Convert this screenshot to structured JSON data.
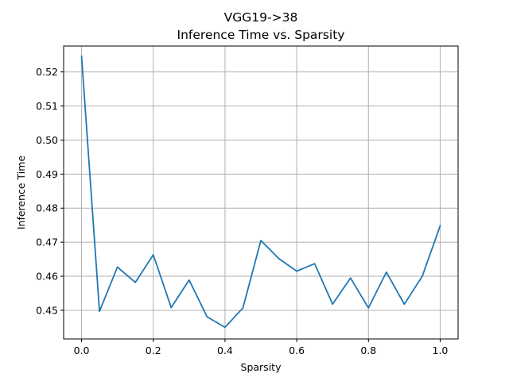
{
  "chart_data": {
    "type": "line",
    "title": "VGG19->38",
    "subtitle": "Inference Time vs. Sparsity",
    "xlabel": "Sparsity",
    "ylabel": "Inference Time",
    "xlim": [
      -0.05,
      1.05
    ],
    "ylim": [
      0.4416,
      0.5276
    ],
    "grid": true,
    "xticks": [
      {
        "value": 0.0,
        "label": "0.0"
      },
      {
        "value": 0.2,
        "label": "0.2"
      },
      {
        "value": 0.4,
        "label": "0.4"
      },
      {
        "value": 0.6,
        "label": "0.6"
      },
      {
        "value": 0.8,
        "label": "0.8"
      },
      {
        "value": 1.0,
        "label": "1.0"
      }
    ],
    "yticks": [
      {
        "value": 0.45,
        "label": "0.45"
      },
      {
        "value": 0.46,
        "label": "0.46"
      },
      {
        "value": 0.47,
        "label": "0.47"
      },
      {
        "value": 0.48,
        "label": "0.48"
      },
      {
        "value": 0.49,
        "label": "0.49"
      },
      {
        "value": 0.5,
        "label": "0.50"
      },
      {
        "value": 0.51,
        "label": "0.51"
      },
      {
        "value": 0.52,
        "label": "0.52"
      }
    ],
    "series": [
      {
        "color": "#1f77b4",
        "x": [
          0.0,
          0.05,
          0.1,
          0.15,
          0.2,
          0.25,
          0.3,
          0.35,
          0.4,
          0.45,
          0.5,
          0.55,
          0.6,
          0.65,
          0.7,
          0.75,
          0.8,
          0.85,
          0.9,
          0.95,
          1.0
        ],
        "y": [
          0.5246,
          0.4497,
          0.4627,
          0.4582,
          0.4663,
          0.4508,
          0.4589,
          0.4481,
          0.445,
          0.4507,
          0.4705,
          0.4652,
          0.4615,
          0.4637,
          0.4518,
          0.4595,
          0.4507,
          0.4612,
          0.4518,
          0.46,
          0.4748
        ]
      }
    ]
  }
}
